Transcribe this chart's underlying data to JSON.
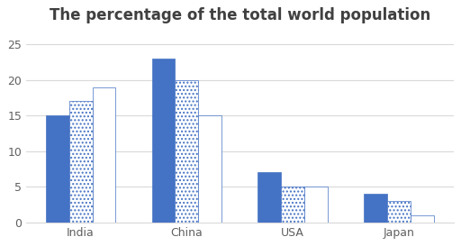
{
  "title": "The percentage of the total world population",
  "categories": [
    "India",
    "China",
    "USA",
    "Japan"
  ],
  "series": {
    "1950": [
      15,
      23,
      7,
      4
    ],
    "2003": [
      17,
      20,
      5,
      3
    ],
    "2050": [
      19,
      15,
      5,
      1
    ]
  },
  "solid_color": "#4472C4",
  "checker_facecolor": "#ffffff",
  "checker_edgecolor": "#4472C4",
  "stripe_facecolor": "#ffffff",
  "stripe_edgecolor": "#4472C4",
  "ylim": [
    0,
    27
  ],
  "yticks": [
    0,
    5,
    10,
    15,
    20,
    25
  ],
  "background_color": "#ffffff",
  "title_fontsize": 12,
  "bar_width": 0.22,
  "grid_color": "#d9d9d9",
  "title_color": "#404040",
  "tick_color": "#606060"
}
